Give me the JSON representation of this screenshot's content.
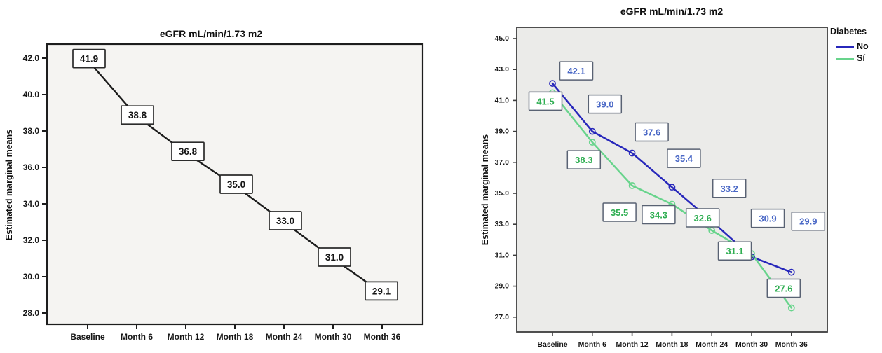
{
  "chart_data": [
    {
      "type": "line",
      "title": "eGFR mL/min/1.73 m2",
      "ylabel": "Estimated marginal means",
      "categories": [
        "Baseline",
        "Month 6",
        "Month 12",
        "Month 18",
        "Month 24",
        "Month 30",
        "Month 36"
      ],
      "yticks": [
        42.0,
        40.0,
        38.0,
        36.0,
        34.0,
        32.0,
        30.0,
        28.0
      ],
      "ytick_labels": [
        "42.0",
        "40.0",
        "38.0",
        "36.0",
        "34.0",
        "32.0",
        "30.0",
        "28.0"
      ],
      "ylim": [
        27.3,
        42.8
      ],
      "grid": false,
      "legend": null,
      "plot_bg": "#f5f4f2",
      "plot_border_color": "#1d1d1d",
      "box_border_color": "#2b2b2b",
      "box_fill": "#ffffff",
      "series": [
        {
          "values": [
            41.9,
            38.8,
            36.8,
            35.0,
            33.0,
            31.0,
            29.1
          ],
          "value_labels": [
            "41.9",
            "38.8",
            "36.8",
            "35.0",
            "33.0",
            "31.0",
            "29.1"
          ],
          "line_color": "#1c1c1c",
          "label_text_color": "#161616",
          "markers": false,
          "label_offsets": [
            [
              2,
              -2
            ],
            [
              1,
              -2
            ],
            [
              3,
              -2
            ],
            [
              2,
              -2
            ],
            [
              2,
              -2
            ],
            [
              2,
              -2
            ],
            [
              -1,
              -3
            ]
          ]
        }
      ]
    },
    {
      "type": "line",
      "title": "eGFR mL/min/1.73 m2",
      "ylabel": "Estimated marginal means",
      "categories": [
        "Baseline",
        "Month 6",
        "Month 12",
        "Month 18",
        "Month 24",
        "Month 30",
        "Month 36"
      ],
      "yticks": [
        45.0,
        43.0,
        41.0,
        39.0,
        37.0,
        35.0,
        33.0,
        31.0,
        29.0,
        27.0
      ],
      "ytick_labels": [
        "45.0",
        "43.0",
        "41.0",
        "39.0",
        "37.0",
        "35.0",
        "33.0",
        "31.0",
        "29.0",
        "27.0"
      ],
      "ylim": [
        26.0,
        45.7
      ],
      "grid": false,
      "legend": {
        "title": "Diabetes",
        "position": "top-right"
      },
      "plot_bg": "#ebebe9",
      "plot_border_color": "#3d3d3d",
      "box_border_color": "#596273",
      "box_fill": "#ffffff",
      "series": [
        {
          "name": "No",
          "values": [
            42.1,
            39.0,
            37.6,
            35.4,
            33.2,
            30.9,
            29.9
          ],
          "value_labels": [
            "42.1",
            "39.0",
            "37.6",
            "35.4",
            "33.2",
            "30.9",
            "29.9"
          ],
          "line_color": "#2727bb",
          "label_text_color": "#4a68c6",
          "markers": true,
          "label_offsets": [
            [
              34,
              -18
            ],
            [
              18,
              -39
            ],
            [
              28,
              -30
            ],
            [
              17,
              -41
            ],
            [
              25,
              -47
            ],
            [
              23,
              -55
            ],
            [
              24,
              -73
            ]
          ]
        },
        {
          "name": "Sí",
          "values": [
            41.5,
            38.3,
            35.5,
            34.3,
            32.6,
            31.1,
            27.6
          ],
          "value_labels": [
            "41.5",
            "38.3",
            "35.5",
            "34.3",
            "32.6",
            "31.1",
            "27.6"
          ],
          "line_color": "#68d48c",
          "label_text_color": "#2fae52",
          "markers": true,
          "label_offsets": [
            [
              -10,
              12
            ],
            [
              -12,
              25
            ],
            [
              -18,
              38
            ],
            [
              -19,
              15
            ],
            [
              -13,
              -18
            ],
            [
              -24,
              -4
            ],
            [
              -11,
              -28
            ]
          ]
        }
      ]
    }
  ]
}
